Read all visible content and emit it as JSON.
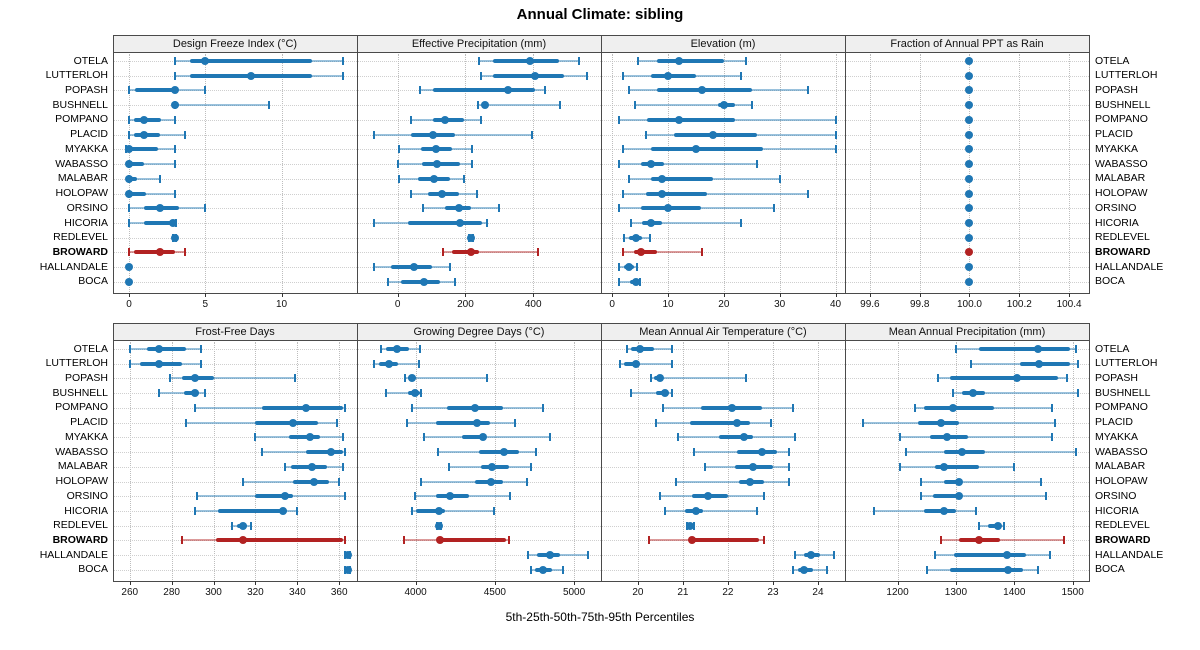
{
  "title": "Annual Climate: sibling",
  "footer": "5th-25th-50th-75th-95th Percentiles",
  "sites": [
    "OTELA",
    "LUTTERLOH",
    "POPASH",
    "BUSHNELL",
    "POMPANO",
    "PLACID",
    "MYAKKA",
    "WABASSO",
    "MALABAR",
    "HOLOPAW",
    "ORSINO",
    "HICORIA",
    "REDLEVEL",
    "BROWARD",
    "HALLANDALE",
    "BOCA"
  ],
  "highlight_site": "BROWARD",
  "colors": {
    "series": "#1f77b4",
    "series_light": "rgba(31,119,180,0.45)",
    "highlight": "#b22222",
    "highlight_light": "rgba(178,34,34,0.45)",
    "panel_header_bg": "#efefef",
    "border": "#4a4a4a",
    "grid": "#bdbdbd"
  },
  "chart_data": {
    "type": "dotplot-intervals",
    "title": "Annual Climate: sibling",
    "note": "Each row shows 5th-25th-50th-75th-95th percentiles per site; BROWARD highlighted red",
    "percentiles": [
      5,
      25,
      50,
      75,
      95
    ],
    "legend_position": "none",
    "grid": "dotted",
    "panels": [
      {
        "title": "Design Freeze Index (°C)",
        "row": 1,
        "col": 1,
        "xlim": [
          -1.05,
          14.95
        ],
        "ticks": [
          0,
          5,
          10
        ],
        "tick_labels": [
          "0",
          "5",
          "10"
        ],
        "values": [
          [
            3,
            4,
            5,
            12,
            14
          ],
          [
            3,
            4,
            8,
            12,
            14
          ],
          [
            0,
            0.4,
            3,
            3.1,
            5
          ],
          [
            3,
            3,
            3,
            3.3,
            9.2
          ],
          [
            0,
            0.3,
            1,
            2.1,
            3
          ],
          [
            0,
            0.3,
            1,
            2,
            3.7
          ],
          [
            -0.2,
            0,
            0,
            1.9,
            3
          ],
          [
            0,
            0,
            0,
            1,
            3
          ],
          [
            0,
            0,
            0,
            0.5,
            2
          ],
          [
            0,
            0,
            0,
            1.1,
            3
          ],
          [
            0,
            1,
            2,
            3.3,
            5
          ],
          [
            0,
            1,
            2.9,
            3,
            3.1
          ],
          [
            2.9,
            3,
            3,
            3,
            3.1
          ],
          [
            0,
            0.3,
            2,
            3,
            3.7
          ],
          [
            0,
            0,
            0,
            0,
            0.1
          ],
          [
            0,
            0,
            0,
            0,
            0.1
          ]
        ]
      },
      {
        "title": "Effective Precipitation (mm)",
        "row": 1,
        "col": 2,
        "xlim": [
          -120,
          600
        ],
        "ticks": [
          0,
          200,
          400
        ],
        "tick_labels": [
          "0",
          "200",
          "400"
        ],
        "values": [
          [
            240,
            280,
            390,
            475,
            535
          ],
          [
            245,
            280,
            405,
            490,
            560
          ],
          [
            65,
            105,
            325,
            405,
            435
          ],
          [
            238,
            248,
            258,
            268,
            480
          ],
          [
            40,
            105,
            140,
            195,
            245
          ],
          [
            -70,
            40,
            105,
            170,
            395
          ],
          [
            5,
            70,
            112,
            160,
            220
          ],
          [
            0,
            73,
            115,
            185,
            218
          ],
          [
            5,
            60,
            107,
            155,
            195
          ],
          [
            40,
            90,
            130,
            180,
            235
          ],
          [
            75,
            140,
            180,
            215,
            300
          ],
          [
            -70,
            30,
            185,
            250,
            265
          ],
          [
            210,
            214,
            217,
            220,
            223
          ],
          [
            135,
            160,
            215,
            240,
            415
          ],
          [
            -70,
            -20,
            48,
            100,
            153
          ],
          [
            -30,
            10,
            77,
            125,
            170
          ]
        ]
      },
      {
        "title": "Elevation (m)",
        "row": 1,
        "col": 3,
        "xlim": [
          -2,
          41.7
        ],
        "ticks": [
          0,
          10,
          20,
          30,
          40
        ],
        "tick_labels": [
          "0",
          "10",
          "20",
          "30",
          "40"
        ],
        "values": [
          [
            4.6,
            8,
            12,
            20,
            24
          ],
          [
            2,
            7,
            10,
            15,
            23
          ],
          [
            3,
            8,
            16,
            25,
            35
          ],
          [
            4,
            19,
            20,
            22,
            25
          ],
          [
            1.3,
            6.3,
            12,
            22,
            40
          ],
          [
            6,
            11,
            18,
            26,
            40
          ],
          [
            2,
            7,
            15,
            27,
            40
          ],
          [
            1.3,
            5.2,
            7,
            9.2,
            26
          ],
          [
            3,
            7,
            9,
            18,
            30
          ],
          [
            2,
            6,
            9,
            17,
            35
          ],
          [
            1.3,
            5.2,
            10,
            16,
            29
          ],
          [
            3.3,
            5.4,
            7,
            9,
            23
          ],
          [
            2.2,
            3.1,
            4.3,
            5.4,
            6.8
          ],
          [
            2,
            3.9,
            5.2,
            8,
            16
          ],
          [
            1.3,
            2.2,
            3.1,
            3.9,
            4.5
          ],
          [
            1.3,
            3.2,
            4.2,
            4.5,
            4.9
          ]
        ]
      },
      {
        "title": "Fraction of Annual PPT as Rain",
        "row": 1,
        "col": 4,
        "xlim": [
          99.5,
          100.48
        ],
        "ticks": [
          99.6,
          99.8,
          100.0,
          100.2,
          100.4
        ],
        "tick_labels": [
          "99.6",
          "99.8",
          "100.0",
          "100.2",
          "100.4"
        ],
        "values": [
          [
            100,
            100,
            100,
            100,
            100
          ],
          [
            100,
            100,
            100,
            100,
            100
          ],
          [
            100,
            100,
            100,
            100,
            100
          ],
          [
            100,
            100,
            100,
            100,
            100
          ],
          [
            100,
            100,
            100,
            100,
            100
          ],
          [
            100,
            100,
            100,
            100,
            100
          ],
          [
            100,
            100,
            100,
            100,
            100
          ],
          [
            100,
            100,
            100,
            100,
            100
          ],
          [
            100,
            100,
            100,
            100,
            100
          ],
          [
            100,
            100,
            100,
            100,
            100
          ],
          [
            100,
            100,
            100,
            100,
            100
          ],
          [
            100,
            100,
            100,
            100,
            100
          ],
          [
            100,
            100,
            100,
            100,
            100
          ],
          [
            100,
            100,
            100,
            100,
            100
          ],
          [
            100,
            100,
            100,
            100,
            100
          ],
          [
            100,
            100,
            100,
            100,
            100
          ]
        ]
      },
      {
        "title": "Frost-Free Days",
        "row": 2,
        "col": 1,
        "xlim": [
          252,
          368.5
        ],
        "ticks": [
          260,
          280,
          300,
          320,
          340,
          360
        ],
        "tick_labels": [
          "260",
          "280",
          "300",
          "320",
          "340",
          "360"
        ],
        "values": [
          [
            260,
            268,
            274,
            287,
            294
          ],
          [
            260,
            265,
            274,
            285,
            294
          ],
          [
            279,
            285,
            291,
            300,
            339
          ],
          [
            274,
            286,
            291,
            293,
            296
          ],
          [
            291,
            323,
            344,
            362,
            363
          ],
          [
            287,
            320,
            338,
            350,
            359
          ],
          [
            320,
            336,
            346,
            351,
            362
          ],
          [
            323,
            344,
            356,
            362,
            363
          ],
          [
            334,
            337,
            347,
            354,
            362
          ],
          [
            314,
            338,
            348,
            355,
            360
          ],
          [
            292,
            320,
            334,
            338,
            363
          ],
          [
            291,
            302,
            333,
            335,
            340
          ],
          [
            309,
            311,
            314,
            316,
            318
          ],
          [
            285,
            301,
            314,
            362,
            363
          ],
          [
            363,
            364,
            364,
            364,
            365
          ],
          [
            363,
            364,
            364,
            364,
            365
          ]
        ]
      },
      {
        "title": "Growing Degree Days (°C)",
        "row": 2,
        "col": 2,
        "xlim": [
          3630,
          5170
        ],
        "ticks": [
          4000,
          4500,
          5000
        ],
        "tick_labels": [
          "4000",
          "4500",
          "5000"
        ],
        "values": [
          [
            3780,
            3815,
            3880,
            3960,
            4030
          ],
          [
            3735,
            3770,
            3835,
            3890,
            4020
          ],
          [
            3930,
            3955,
            3980,
            4005,
            4450
          ],
          [
            3815,
            3950,
            3995,
            4025,
            4035
          ],
          [
            3980,
            4200,
            4375,
            4550,
            4805
          ],
          [
            3945,
            4130,
            4390,
            4470,
            4625
          ],
          [
            4055,
            4295,
            4425,
            4445,
            4850
          ],
          [
            4140,
            4400,
            4555,
            4650,
            4760
          ],
          [
            4210,
            4415,
            4480,
            4590,
            4730
          ],
          [
            4035,
            4375,
            4475,
            4550,
            4705
          ],
          [
            3995,
            4130,
            4220,
            4340,
            4595
          ],
          [
            3980,
            4005,
            4145,
            4185,
            4495
          ],
          [
            4135,
            4140,
            4147,
            4155,
            4160
          ],
          [
            3925,
            4145,
            4155,
            4570,
            4590
          ],
          [
            4710,
            4765,
            4845,
            4910,
            5090
          ],
          [
            4730,
            4755,
            4805,
            4860,
            4930
          ]
        ]
      },
      {
        "title": "Mean Annual Air Temperature (°C)",
        "row": 2,
        "col": 3,
        "xlim": [
          19.18,
          24.6
        ],
        "ticks": [
          20,
          21,
          22,
          23,
          24
        ],
        "tick_labels": [
          "20",
          "21",
          "22",
          "23",
          "24"
        ],
        "values": [
          [
            19.75,
            19.85,
            20.05,
            20.35,
            20.75
          ],
          [
            19.6,
            19.7,
            19.95,
            20.05,
            20.75
          ],
          [
            20.3,
            20.35,
            20.5,
            20.55,
            22.4
          ],
          [
            19.85,
            20.4,
            20.6,
            20.7,
            20.75
          ],
          [
            20.55,
            21.4,
            22.1,
            22.75,
            23.45
          ],
          [
            20.4,
            21.15,
            22.2,
            22.5,
            22.95
          ],
          [
            20.9,
            21.8,
            22.35,
            22.55,
            23.5
          ],
          [
            21.25,
            22.2,
            22.75,
            23.1,
            23.35
          ],
          [
            21.5,
            22.15,
            22.55,
            23.0,
            23.35
          ],
          [
            20.85,
            22.25,
            22.5,
            22.8,
            23.35
          ],
          [
            20.5,
            21.2,
            21.55,
            22.0,
            22.8
          ],
          [
            20.6,
            21.05,
            21.3,
            21.45,
            22.65
          ],
          [
            21.1,
            21.12,
            21.16,
            21.2,
            21.25
          ],
          [
            20.25,
            21.15,
            21.2,
            22.7,
            22.8
          ],
          [
            23.5,
            23.7,
            23.85,
            24.05,
            24.35
          ],
          [
            23.45,
            23.55,
            23.7,
            23.9,
            24.2
          ]
        ]
      },
      {
        "title": "Mean Annual Precipitation (mm)",
        "row": 2,
        "col": 4,
        "xlim": [
          1110,
          1528
        ],
        "ticks": [
          1200,
          1300,
          1400,
          1500
        ],
        "tick_labels": [
          "1200",
          "1300",
          "1400",
          "1500"
        ],
        "values": [
          [
            1300,
            1340,
            1440,
            1495,
            1505
          ],
          [
            1325,
            1410,
            1443,
            1495,
            1510
          ],
          [
            1270,
            1290,
            1405,
            1475,
            1490
          ],
          [
            1295,
            1310,
            1330,
            1350,
            1510
          ],
          [
            1230,
            1245,
            1295,
            1365,
            1465
          ],
          [
            1140,
            1235,
            1275,
            1305,
            1470
          ],
          [
            1205,
            1255,
            1285,
            1320,
            1465
          ],
          [
            1215,
            1280,
            1310,
            1350,
            1505
          ],
          [
            1205,
            1265,
            1280,
            1340,
            1400
          ],
          [
            1240,
            1280,
            1305,
            1310,
            1445
          ],
          [
            1240,
            1260,
            1305,
            1310,
            1455
          ],
          [
            1160,
            1245,
            1280,
            1300,
            1335
          ],
          [
            1340,
            1355,
            1372,
            1378,
            1382
          ],
          [
            1275,
            1305,
            1340,
            1375,
            1485
          ],
          [
            1265,
            1297,
            1388,
            1420,
            1462
          ],
          [
            1250,
            1290,
            1390,
            1415,
            1440
          ]
        ]
      }
    ]
  }
}
